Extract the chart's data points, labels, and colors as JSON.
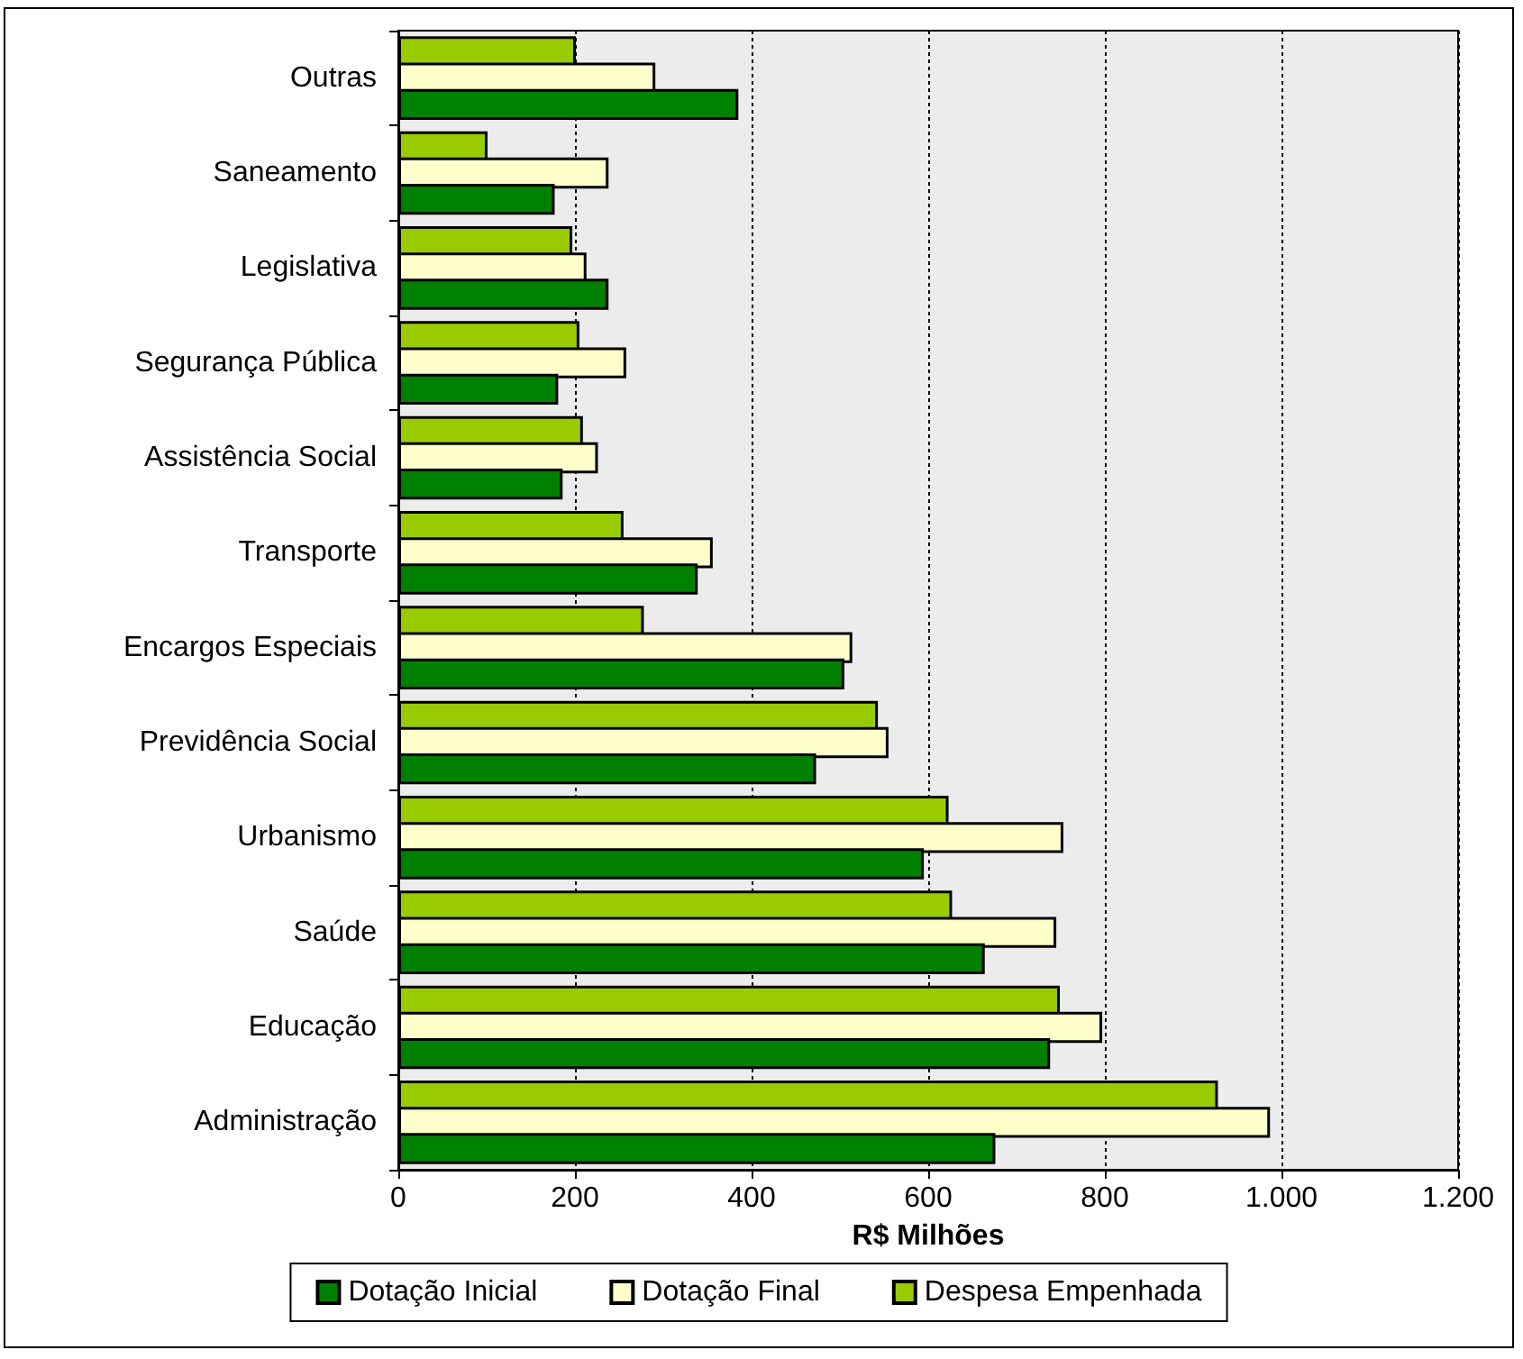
{
  "chart_data": {
    "type": "bar",
    "orientation": "horizontal",
    "xlabel": "R$ Milhões",
    "categories": [
      "Outras",
      "Saneamento",
      "Legislativa",
      "Segurança Pública",
      "Assistência Social",
      "Transporte",
      "Encargos Especiais",
      "Previdência Social",
      "Urbanismo",
      "Saúde",
      "Educação",
      "Administração"
    ],
    "series": [
      {
        "name": "Dotação Inicial",
        "color": "#008000",
        "values": [
          385,
          177,
          238,
          181,
          186,
          339,
          505,
          473,
          595,
          664,
          738,
          676
        ]
      },
      {
        "name": "Dotação Final",
        "color": "#ffffcc",
        "values": [
          291,
          238,
          213,
          258,
          226,
          356,
          514,
          555,
          753,
          745,
          797,
          987
        ]
      },
      {
        "name": "Despesa Empenhada",
        "color": "#99cc00",
        "values": [
          201,
          101,
          197,
          205,
          209,
          255,
          278,
          543,
          623,
          627,
          749,
          928
        ]
      }
    ],
    "xlim": [
      0,
      1200
    ],
    "xticks": [
      0,
      200,
      400,
      600,
      800,
      {
        "value": 1000,
        "label": "1.000"
      },
      {
        "value": 1200,
        "label": "1.200"
      }
    ],
    "grid": "x",
    "legend": "bottom"
  }
}
